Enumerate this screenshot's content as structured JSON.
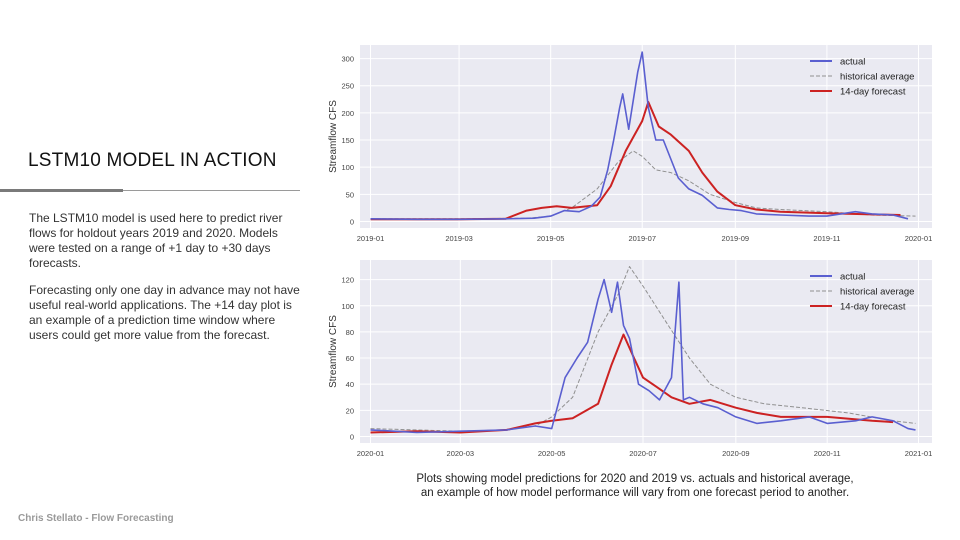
{
  "slide": {
    "title": "LSTM10 MODEL IN ACTION",
    "paragraph1": "The LSTM10 model is used here to predict river flows for holdout years 2019 and 2020. Models were tested on a range of +1 day to +30 days forecasts.",
    "paragraph2": "Forecasting only one day in advance may not have useful real-world applications. The +14 day plot is an example of a prediction time window where users could get more value from the forecast.",
    "caption_line1": "Plots showing model predictions for 2020 and 2019 vs. actuals and historical average,",
    "caption_line2": "an example of how model performance will vary from one forecast period to another.",
    "footer": "Chris Stellato - Flow Forecasting"
  },
  "colors": {
    "actual": "#5a5fd0",
    "historical": "#909090",
    "forecast": "#cc2222",
    "plot_bg": "#eaeaf2"
  },
  "chart_data": [
    {
      "type": "line",
      "title": "",
      "xlabel": "",
      "ylabel": "Streamflow CFS",
      "xlim": [
        "2018-12-25",
        "2020-01-10"
      ],
      "ylim": [
        -12,
        325
      ],
      "yticks": [
        0,
        50,
        100,
        150,
        200,
        250,
        300
      ],
      "xticks": [
        "2019-01",
        "2019-03",
        "2019-05",
        "2019-07",
        "2019-09",
        "2019-11",
        "2020-01"
      ],
      "legend_position": "top-right",
      "grid": true,
      "series": [
        {
          "name": "actual",
          "style": "solid",
          "x": [
            "2019-01-01",
            "2019-02-01",
            "2019-03-01",
            "2019-04-01",
            "2019-04-20",
            "2019-05-01",
            "2019-05-10",
            "2019-05-20",
            "2019-05-28",
            "2019-06-03",
            "2019-06-08",
            "2019-06-12",
            "2019-06-16",
            "2019-06-18",
            "2019-06-22",
            "2019-06-26",
            "2019-06-28",
            "2019-07-01",
            "2019-07-05",
            "2019-07-10",
            "2019-07-15",
            "2019-07-20",
            "2019-07-25",
            "2019-08-01",
            "2019-08-10",
            "2019-08-20",
            "2019-08-28",
            "2019-09-05",
            "2019-09-15",
            "2019-10-01",
            "2019-10-20",
            "2019-11-01",
            "2019-11-20",
            "2019-12-01",
            "2019-12-15",
            "2019-12-25"
          ],
          "y": [
            5,
            4,
            4,
            5,
            6,
            10,
            20,
            18,
            28,
            45,
            95,
            150,
            210,
            235,
            170,
            240,
            275,
            312,
            210,
            150,
            150,
            115,
            80,
            60,
            48,
            25,
            22,
            20,
            14,
            12,
            10,
            10,
            18,
            14,
            12,
            5
          ]
        },
        {
          "name": "historical average",
          "style": "dashed",
          "x": [
            "2019-01-01",
            "2019-03-01",
            "2019-04-15",
            "2019-05-01",
            "2019-05-15",
            "2019-06-01",
            "2019-06-15",
            "2019-06-25",
            "2019-07-01",
            "2019-07-10",
            "2019-07-20",
            "2019-08-01",
            "2019-08-15",
            "2019-09-01",
            "2019-09-15",
            "2019-10-01",
            "2019-11-01",
            "2019-12-01",
            "2019-12-30"
          ],
          "y": [
            5,
            5,
            6,
            10,
            25,
            60,
            110,
            130,
            120,
            95,
            90,
            75,
            50,
            35,
            25,
            22,
            18,
            12,
            10
          ]
        },
        {
          "name": "14-day forecast",
          "style": "solid",
          "x": [
            "2019-01-01",
            "2019-03-01",
            "2019-04-01",
            "2019-04-15",
            "2019-04-25",
            "2019-05-05",
            "2019-05-15",
            "2019-06-01",
            "2019-06-10",
            "2019-06-20",
            "2019-07-01",
            "2019-07-05",
            "2019-07-12",
            "2019-07-20",
            "2019-08-01",
            "2019-08-10",
            "2019-08-20",
            "2019-09-01",
            "2019-09-15",
            "2019-10-01",
            "2019-11-01",
            "2019-12-01",
            "2019-12-20"
          ],
          "y": [
            4,
            4,
            5,
            20,
            25,
            28,
            25,
            30,
            65,
            130,
            185,
            220,
            175,
            160,
            130,
            90,
            55,
            30,
            22,
            18,
            15,
            13,
            12
          ]
        }
      ]
    },
    {
      "type": "line",
      "title": "",
      "xlabel": "",
      "ylabel": "Streamflow CFS",
      "xlim": [
        "2019-12-25",
        "2021-01-10"
      ],
      "ylim": [
        -5,
        135
      ],
      "yticks": [
        0,
        20,
        40,
        60,
        80,
        100,
        120
      ],
      "xticks": [
        "2020-01",
        "2020-03",
        "2020-05",
        "2020-07",
        "2020-09",
        "2020-11",
        "2021-01"
      ],
      "legend_position": "top-right",
      "grid": true,
      "series": [
        {
          "name": "actual",
          "style": "solid",
          "x": [
            "2020-01-01",
            "2020-02-01",
            "2020-03-01",
            "2020-04-01",
            "2020-04-20",
            "2020-05-01",
            "2020-05-10",
            "2020-05-18",
            "2020-05-25",
            "2020-06-01",
            "2020-06-05",
            "2020-06-10",
            "2020-06-14",
            "2020-06-18",
            "2020-06-22",
            "2020-06-28",
            "2020-07-05",
            "2020-07-12",
            "2020-07-20",
            "2020-07-25",
            "2020-07-28",
            "2020-08-01",
            "2020-08-10",
            "2020-08-20",
            "2020-09-01",
            "2020-09-15",
            "2020-10-01",
            "2020-10-20",
            "2020-11-01",
            "2020-11-20",
            "2020-12-01",
            "2020-12-15",
            "2020-12-25",
            "2020-12-30"
          ],
          "y": [
            5,
            3,
            4,
            5,
            8,
            6,
            45,
            60,
            72,
            105,
            120,
            95,
            118,
            85,
            75,
            40,
            35,
            28,
            45,
            118,
            28,
            30,
            25,
            22,
            15,
            10,
            12,
            15,
            10,
            12,
            15,
            12,
            6,
            5
          ]
        },
        {
          "name": "historical average",
          "style": "dashed",
          "x": [
            "2020-01-01",
            "2020-03-01",
            "2020-04-01",
            "2020-04-20",
            "2020-05-01",
            "2020-05-15",
            "2020-06-01",
            "2020-06-15",
            "2020-06-22",
            "2020-07-01",
            "2020-07-15",
            "2020-08-01",
            "2020-08-15",
            "2020-09-01",
            "2020-09-20",
            "2020-10-15",
            "2020-11-15",
            "2020-12-15",
            "2020-12-30"
          ],
          "y": [
            6,
            4,
            5,
            8,
            15,
            30,
            80,
            110,
            130,
            115,
            90,
            60,
            40,
            30,
            25,
            22,
            18,
            12,
            10
          ]
        },
        {
          "name": "14-day forecast",
          "style": "solid",
          "x": [
            "2020-01-01",
            "2020-02-01",
            "2020-03-01",
            "2020-04-01",
            "2020-04-20",
            "2020-05-01",
            "2020-05-15",
            "2020-06-01",
            "2020-06-10",
            "2020-06-18",
            "2020-06-25",
            "2020-07-01",
            "2020-07-10",
            "2020-07-20",
            "2020-08-01",
            "2020-08-15",
            "2020-09-01",
            "2020-09-15",
            "2020-10-01",
            "2020-11-01",
            "2020-12-01",
            "2020-12-15"
          ],
          "y": [
            3,
            4,
            3,
            5,
            10,
            12,
            14,
            25,
            55,
            78,
            60,
            45,
            38,
            30,
            25,
            28,
            22,
            18,
            15,
            15,
            12,
            11
          ]
        }
      ]
    }
  ]
}
